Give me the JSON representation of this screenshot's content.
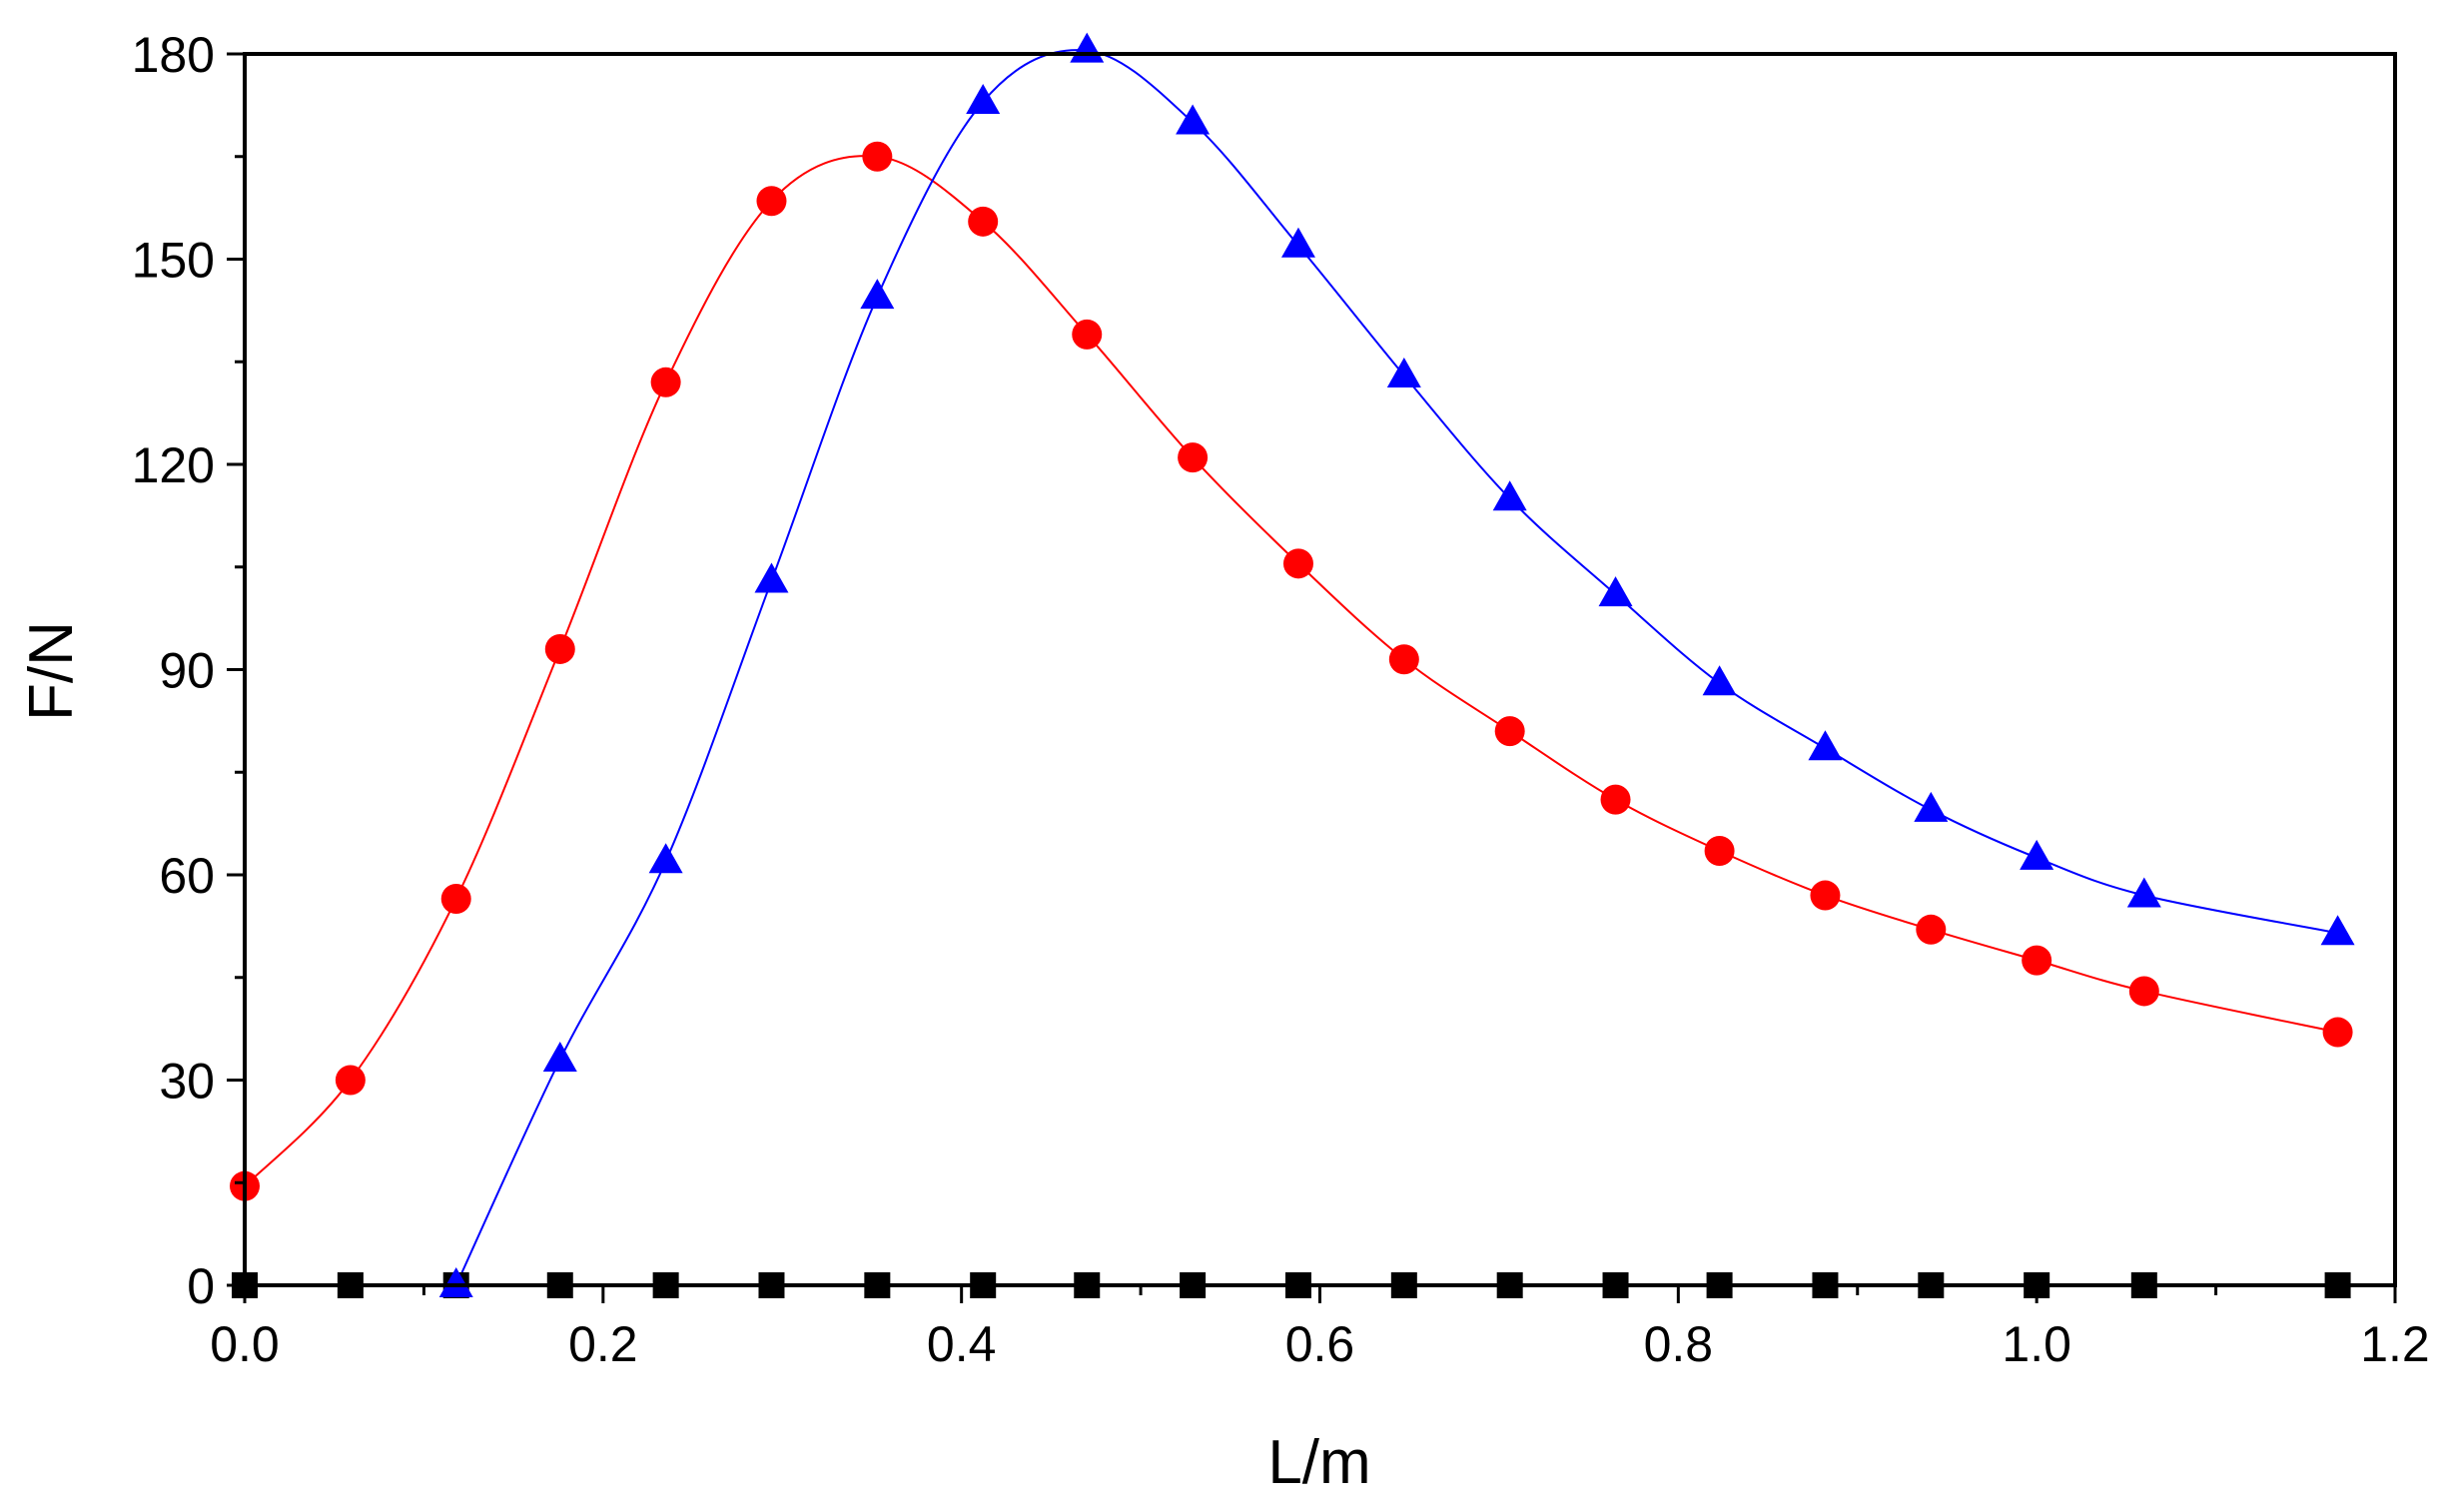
{
  "chart_data": {
    "type": "scatter",
    "title": "",
    "xlabel": "L/m",
    "ylabel": "F/N",
    "xlim": [
      0.0,
      1.2
    ],
    "ylim": [
      0,
      180
    ],
    "x_ticks": [
      "0.0",
      "0.2",
      "0.4",
      "0.6",
      "0.8",
      "1.0",
      "1.2"
    ],
    "y_ticks": [
      "0",
      "30",
      "60",
      "90",
      "120",
      "150",
      "180"
    ],
    "grid": false,
    "legend": "none",
    "series": [
      {
        "name": "zero",
        "marker": "square",
        "color": "#000000",
        "points": [
          [
            0.0,
            0
          ],
          [
            0.059,
            0
          ],
          [
            0.118,
            0
          ],
          [
            0.176,
            0
          ],
          [
            0.235,
            0
          ],
          [
            0.294,
            0
          ],
          [
            0.353,
            0
          ],
          [
            0.412,
            0
          ],
          [
            0.47,
            0
          ],
          [
            0.529,
            0
          ],
          [
            0.588,
            0
          ],
          [
            0.647,
            0
          ],
          [
            0.706,
            0
          ],
          [
            0.765,
            0
          ],
          [
            0.823,
            0
          ],
          [
            0.882,
            0
          ],
          [
            0.941,
            0
          ],
          [
            1.0,
            0
          ],
          [
            1.06,
            0
          ],
          [
            1.168,
            0
          ]
        ]
      },
      {
        "name": "red",
        "marker": "circle",
        "color": "#ff0000",
        "points": [
          [
            0.0,
            14.5
          ],
          [
            0.059,
            30
          ],
          [
            0.118,
            56.5
          ],
          [
            0.176,
            93
          ],
          [
            0.235,
            132
          ],
          [
            0.294,
            158.5
          ],
          [
            0.353,
            165
          ],
          [
            0.412,
            155.5
          ],
          [
            0.47,
            139
          ],
          [
            0.529,
            121
          ],
          [
            0.588,
            105.5
          ],
          [
            0.647,
            91.5
          ],
          [
            0.706,
            81
          ],
          [
            0.765,
            71
          ],
          [
            0.823,
            63.5
          ],
          [
            0.882,
            57
          ],
          [
            0.941,
            52
          ],
          [
            1.0,
            47.5
          ],
          [
            1.06,
            43
          ],
          [
            1.168,
            37
          ]
        ]
      },
      {
        "name": "blue",
        "marker": "triangle",
        "color": "#0000ff",
        "points": [
          [
            0.118,
            0
          ],
          [
            0.176,
            33
          ],
          [
            0.235,
            62
          ],
          [
            0.294,
            103
          ],
          [
            0.353,
            144.5
          ],
          [
            0.412,
            173
          ],
          [
            0.47,
            180.5
          ],
          [
            0.529,
            170
          ],
          [
            0.588,
            152
          ],
          [
            0.647,
            133
          ],
          [
            0.706,
            115
          ],
          [
            0.765,
            101
          ],
          [
            0.823,
            88
          ],
          [
            0.882,
            78.5
          ],
          [
            0.941,
            69.5
          ],
          [
            1.0,
            62.5
          ],
          [
            1.06,
            57
          ],
          [
            1.168,
            51.5
          ]
        ]
      }
    ]
  }
}
